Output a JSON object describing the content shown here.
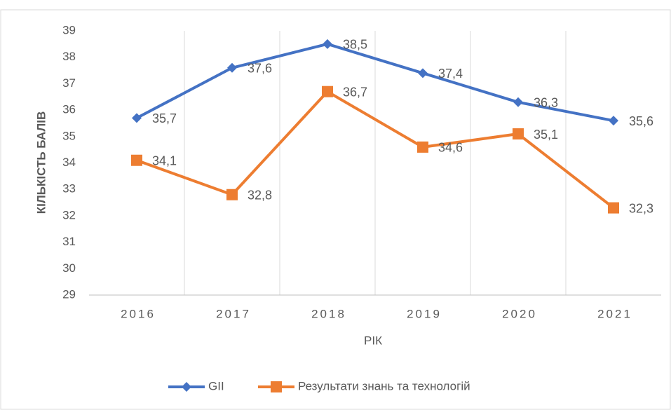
{
  "chart_data": {
    "type": "line",
    "categories": [
      "2016",
      "2017",
      "2018",
      "2019",
      "2020",
      "2021"
    ],
    "series": [
      {
        "name": "GII",
        "color": "#4472c4",
        "marker": "diamond",
        "values": [
          35.7,
          37.6,
          38.5,
          37.4,
          36.3,
          35.6
        ],
        "value_labels": [
          "35,7",
          "37,6",
          "38,5",
          "37,4",
          "36,3",
          "35,6"
        ]
      },
      {
        "name": "Результати знань та технологій",
        "color": "#ed7d31",
        "marker": "square",
        "values": [
          34.1,
          32.8,
          36.7,
          34.6,
          35.1,
          32.3
        ],
        "value_labels": [
          "34,1",
          "32,8",
          "36,7",
          "34,6",
          "35,1",
          "32,3"
        ]
      }
    ],
    "x_label": "РІК",
    "y_label": "КІЛЬКІСТЬ БАЛІВ",
    "ylim": [
      29,
      39
    ],
    "yticks": [
      29,
      30,
      31,
      32,
      33,
      34,
      35,
      36,
      37,
      38,
      39
    ],
    "grid": "vertical",
    "legend": "bottom"
  }
}
